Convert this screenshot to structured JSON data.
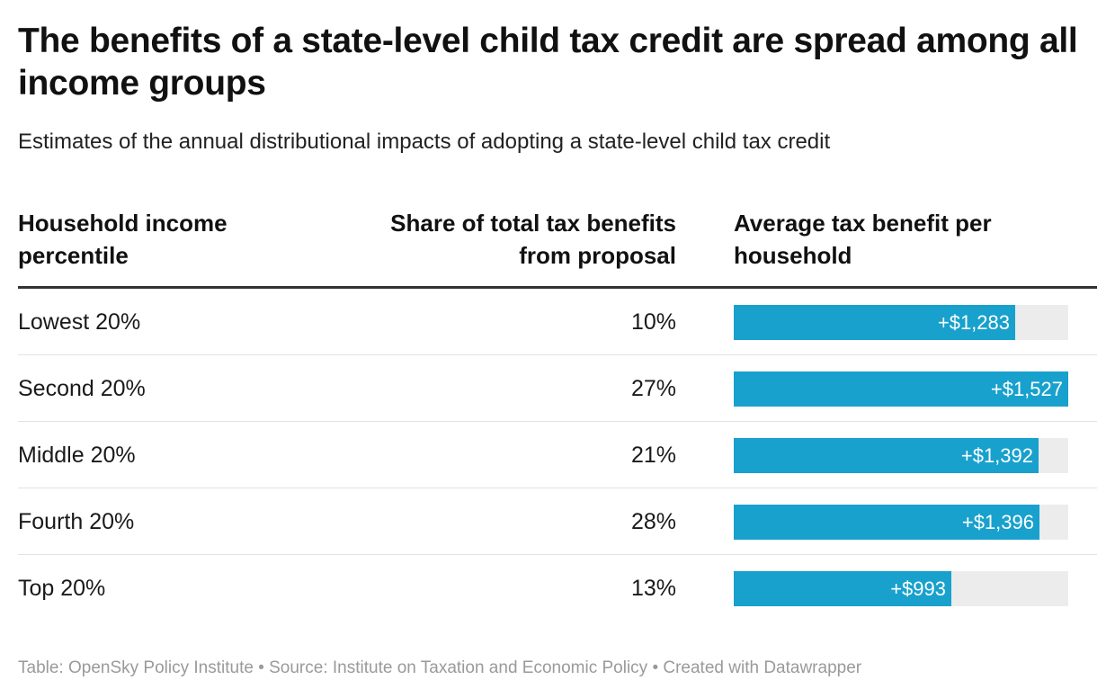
{
  "title": "The benefits of a state-level child tax credit are spread among all income groups",
  "subtitle": "Estimates of the annual distributional impacts of adopting a state-level child tax credit",
  "chart_data": {
    "type": "table",
    "columns": [
      "Household income percentile",
      "Share of total tax benefits from proposal",
      "Average tax benefit per household"
    ],
    "rows": [
      {
        "label": "Lowest 20%",
        "share": "10%",
        "benefit": 1283,
        "benefit_label": "+$1,283"
      },
      {
        "label": "Second 20%",
        "share": "27%",
        "benefit": 1527,
        "benefit_label": "+$1,527"
      },
      {
        "label": "Middle 20%",
        "share": "21%",
        "benefit": 1392,
        "benefit_label": "+$1,392"
      },
      {
        "label": "Fourth 20%",
        "share": "28%",
        "benefit": 1396,
        "benefit_label": "+$1,396"
      },
      {
        "label": "Top 20%",
        "share": "13%",
        "benefit": 993,
        "benefit_label": "+$993"
      }
    ],
    "benefit_range": [
      0,
      1527
    ],
    "bar_color": "#18a1cd",
    "track_color": "#ececec"
  },
  "footer": "Table: OpenSky Policy Institute • Source: Institute on Taxation and Economic Policy • Created with Datawrapper"
}
